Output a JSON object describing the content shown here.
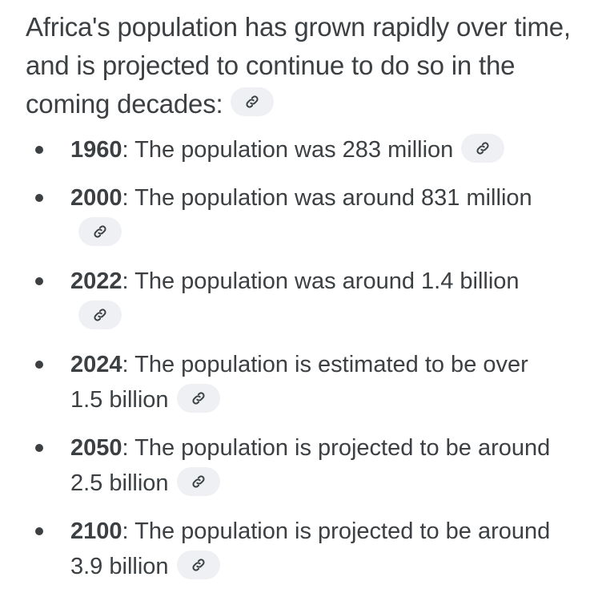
{
  "intro": {
    "text": "Africa's population has grown rapidly over time, and is projected to continue to do so in the coming decades:",
    "link_icon": "link-icon"
  },
  "items": [
    {
      "year": "1960",
      "text": ": The population was 283 million",
      "link_icon": "link-icon"
    },
    {
      "year": "2000",
      "text": ": The population was around 831 million",
      "link_icon": "link-icon"
    },
    {
      "year": "2022",
      "text": ": The population was around 1.4 billion",
      "link_icon": "link-icon"
    },
    {
      "year": "2024",
      "text": ": The population is estimated to be over 1.5 billion",
      "link_icon": "link-icon"
    },
    {
      "year": "2050",
      "text": ": The population is projected to be around 2.5 billion",
      "link_icon": "link-icon"
    },
    {
      "year": "2100",
      "text": ": The population is projected to be around 3.9 billion",
      "link_icon": "link-icon"
    }
  ],
  "colors": {
    "text": "#3c4043",
    "chip_bg": "#eef0f3"
  }
}
